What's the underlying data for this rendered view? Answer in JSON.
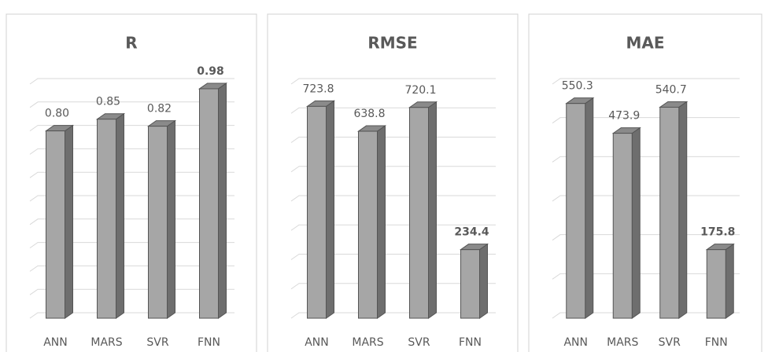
{
  "chart_data": [
    {
      "type": "bar",
      "title": "R",
      "categories": [
        "ANN",
        "MARS",
        "SVR",
        "FNN"
      ],
      "values": [
        0.8,
        0.85,
        0.82,
        0.98
      ],
      "value_labels": [
        "0.80",
        "0.85",
        "0.82",
        "0.98"
      ],
      "color": "#a6a6a6",
      "ylim": [
        0,
        1
      ],
      "yticks": [
        0,
        0.1,
        0.2,
        0.3,
        0.4,
        0.5,
        0.6,
        0.7,
        0.8,
        0.9,
        1
      ],
      "grid": true
    },
    {
      "type": "bar",
      "title": "RMSE",
      "categories": [
        "ANN",
        "MARS",
        "SVR",
        "FNN"
      ],
      "values": [
        723.8,
        638.8,
        720.1,
        234.4
      ],
      "color": "#a6a6a6",
      "ylim": [
        0,
        800
      ],
      "yticks": [
        0,
        100,
        200,
        300,
        400,
        500,
        600,
        700,
        800
      ],
      "grid": true
    },
    {
      "type": "bar",
      "title": "MAE",
      "categories": [
        "ANN",
        "MARS",
        "SVR",
        "FNN"
      ],
      "values": [
        550.3,
        473.9,
        540.7,
        175.8
      ],
      "color": "#a6a6a6",
      "ylim": [
        0,
        600
      ],
      "yticks": [
        0,
        100,
        200,
        300,
        400,
        500,
        600
      ],
      "grid": true
    }
  ]
}
